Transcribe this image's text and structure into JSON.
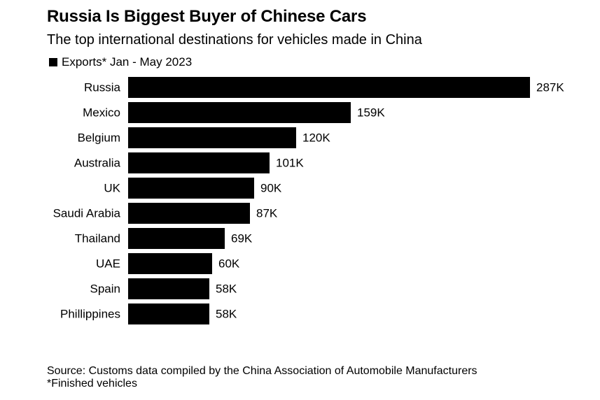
{
  "chart_data": {
    "type": "bar",
    "orientation": "horizontal",
    "title": "Russia Is Biggest Buyer of Chinese Cars",
    "subtitle": "The top international destinations for vehicles made in China",
    "categories": [
      "Russia",
      "Mexico",
      "Belgium",
      "Australia",
      "UK",
      "Saudi Arabia",
      "Thailand",
      "UAE",
      "Spain",
      "Phillippines"
    ],
    "series": [
      {
        "name": "Exports* Jan - May 2023",
        "values": [
          287,
          159,
          120,
          101,
          90,
          87,
          69,
          60,
          58,
          58
        ],
        "labels": [
          "287K",
          "159K",
          "120K",
          "101K",
          "90K",
          "87K",
          "69K",
          "60K",
          "58K",
          "58K"
        ],
        "color": "#000000"
      }
    ],
    "xlim": [
      0,
      287
    ],
    "grid": false,
    "legend_position": "top-left",
    "source": "Source: Customs data compiled by the China Association of Automobile Manufacturers",
    "note": "*Finished vehicles"
  }
}
